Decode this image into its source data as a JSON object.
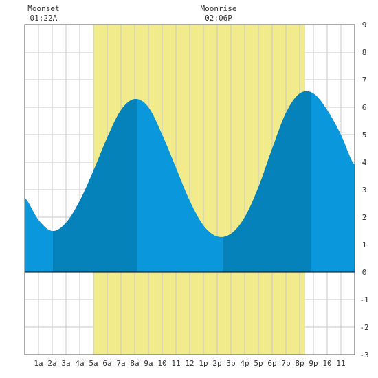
{
  "chart_data": {
    "type": "area",
    "title": "",
    "xlabel": "",
    "ylabel": "",
    "xlim": [
      0,
      24
    ],
    "ylim": [
      -3,
      9
    ],
    "grid": true,
    "x_tick_labels": [
      "1a",
      "2a",
      "3a",
      "4a",
      "5a",
      "6a",
      "7a",
      "8a",
      "9a",
      "10",
      "11",
      "12",
      "1p",
      "2p",
      "3p",
      "4p",
      "5p",
      "6p",
      "7p",
      "8p",
      "9p",
      "10",
      "11"
    ],
    "y_tick_labels": [
      "-3",
      "-2",
      "-1",
      "0",
      "1",
      "2",
      "3",
      "4",
      "5",
      "6",
      "7",
      "8",
      "9"
    ],
    "daylight": {
      "start": 5.0,
      "end": 20.4,
      "color": "#f2eb8c"
    },
    "annotations": [
      {
        "label": "Moonset",
        "time": "01:22A",
        "x": 1.37
      },
      {
        "label": "Moonrise",
        "time": "02:06P",
        "x": 14.1
      }
    ],
    "extremes": [
      {
        "type": "low",
        "x": 2.05,
        "y": 1.5
      },
      {
        "type": "high",
        "x": 8.2,
        "y": 6.3
      },
      {
        "type": "low",
        "x": 14.4,
        "y": 1.25
      },
      {
        "type": "high",
        "x": 20.8,
        "y": 6.6
      }
    ],
    "series": [
      {
        "x": [
          0,
          1,
          2,
          3,
          4,
          5,
          6,
          7,
          8,
          9,
          10,
          11,
          12,
          13,
          14,
          15,
          16,
          17,
          18,
          19,
          20,
          21,
          22,
          23,
          24
        ],
        "y": [
          2.7,
          1.9,
          1.5,
          1.8,
          2.6,
          3.7,
          4.9,
          5.9,
          6.3,
          6.0,
          5.0,
          3.8,
          2.6,
          1.7,
          1.3,
          1.4,
          2.0,
          3.1,
          4.5,
          5.8,
          6.5,
          6.5,
          5.9,
          5.0,
          3.9
        ],
        "color": "#0a8fd8"
      }
    ],
    "band_colors": {
      "light": "#0a97dc",
      "dark": "#0482b9"
    },
    "grid_color": "#c8c8c8",
    "zero_line_color": "#000000"
  }
}
